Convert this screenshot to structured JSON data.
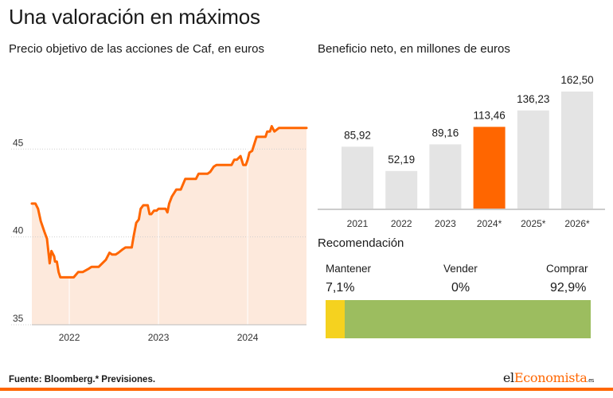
{
  "header": {
    "title": "Una valoración en máximos"
  },
  "colors": {
    "accent": "#ff6600",
    "area_fill": "#fde9dc",
    "bar_grey": "#e4e4e4",
    "bar_highlight": "#ff6600",
    "mantener": "#f5d21f",
    "vender": "#d0d0d0",
    "comprar": "#9cbd5f"
  },
  "chart_data": [
    {
      "type": "area",
      "title": "Precio objetivo de las acciones de Caf, en euros",
      "xlabel": "",
      "ylabel": "",
      "xlim": [
        2021.58,
        2024.66
      ],
      "ylim": [
        35,
        49.5
      ],
      "yticks": [
        35,
        40,
        45
      ],
      "xticks": [
        {
          "value": 2022.0,
          "label": "2022"
        },
        {
          "value": 2023.0,
          "label": "2023"
        },
        {
          "value": 2024.0,
          "label": "2024"
        }
      ],
      "grid": true,
      "legend": "none",
      "x": [
        2021.58,
        2021.62,
        2021.65,
        2021.68,
        2021.72,
        2021.75,
        2021.78,
        2021.8,
        2021.83,
        2021.84,
        2021.86,
        2021.88,
        2021.9,
        2021.93,
        2021.95,
        2021.99,
        2022.05,
        2022.1,
        2022.13,
        2022.15,
        2022.22,
        2022.25,
        2022.29,
        2022.33,
        2022.41,
        2022.45,
        2022.48,
        2022.52,
        2022.55,
        2022.6,
        2022.63,
        2022.7,
        2022.72,
        2022.75,
        2022.78,
        2022.8,
        2022.83,
        2022.86,
        2022.88,
        2022.9,
        2022.92,
        2022.95,
        2022.98,
        2023.0,
        2023.05,
        2023.08,
        2023.1,
        2023.12,
        2023.15,
        2023.2,
        2023.25,
        2023.3,
        2023.35,
        2023.38,
        2023.42,
        2023.45,
        2023.48,
        2023.52,
        2023.55,
        2023.58,
        2023.62,
        2023.65,
        2023.7,
        2023.73,
        2023.78,
        2023.82,
        2023.85,
        2023.88,
        2023.92,
        2023.95,
        2023.98,
        2024.0,
        2024.02,
        2024.05,
        2024.1,
        2024.12,
        2024.14,
        2024.17,
        2024.2,
        2024.22,
        2024.25,
        2024.27,
        2024.3,
        2024.35,
        2024.4,
        2024.45,
        2024.5,
        2024.55,
        2024.6,
        2024.66
      ],
      "y": [
        41.9,
        41.9,
        41.6,
        40.9,
        40.3,
        39.9,
        38.5,
        39.2,
        38.9,
        38.6,
        38.6,
        38.0,
        37.7,
        37.7,
        37.7,
        37.7,
        37.7,
        38.0,
        38.0,
        38.0,
        38.2,
        38.3,
        38.3,
        38.3,
        38.7,
        39.1,
        39.0,
        39.0,
        39.1,
        39.3,
        39.4,
        39.4,
        40.0,
        40.8,
        41.0,
        41.6,
        41.8,
        41.8,
        41.8,
        41.3,
        41.3,
        41.5,
        41.5,
        41.6,
        41.6,
        41.6,
        41.4,
        41.9,
        42.3,
        42.7,
        42.7,
        43.3,
        43.3,
        43.3,
        43.3,
        43.6,
        43.6,
        43.6,
        43.6,
        43.7,
        44.0,
        44.1,
        44.1,
        44.1,
        44.1,
        44.1,
        44.4,
        44.4,
        44.6,
        44.1,
        44.1,
        44.4,
        44.8,
        44.9,
        45.7,
        45.7,
        45.7,
        45.7,
        45.7,
        46.0,
        46.0,
        46.3,
        46.0,
        46.2,
        46.2,
        46.2,
        46.2,
        46.2,
        46.2,
        46.2
      ]
    },
    {
      "type": "bar",
      "title": "Beneficio neto, en millones de euros",
      "xlabel": "",
      "ylabel": "",
      "ylim": [
        0,
        162.5
      ],
      "grid": false,
      "legend": "none",
      "categories": [
        "2021",
        "2022",
        "2023",
        "2024*",
        "2025*",
        "2026*"
      ],
      "values": [
        85.92,
        52.19,
        89.16,
        113.46,
        136.23,
        162.5
      ],
      "value_labels": [
        "85,92",
        "52,19",
        "89,16",
        "113,46",
        "136,23",
        "162,50"
      ],
      "highlight_index": 3
    },
    {
      "type": "bar",
      "orientation": "horizontal-stacked",
      "title": "Recomendación",
      "xlabel": "",
      "ylabel": "",
      "legend": "none",
      "categories": [
        "Mantener",
        "Vender",
        "Comprar"
      ],
      "values": [
        7.1,
        0,
        92.9
      ],
      "value_labels": [
        "7,1%",
        "0%",
        "92,9%"
      ]
    }
  ],
  "footer": {
    "source": "Fuente: Bloomberg.* Previsiones.",
    "brand_part1": "el",
    "brand_part2": "Economista",
    "brand_tld": ".es"
  }
}
